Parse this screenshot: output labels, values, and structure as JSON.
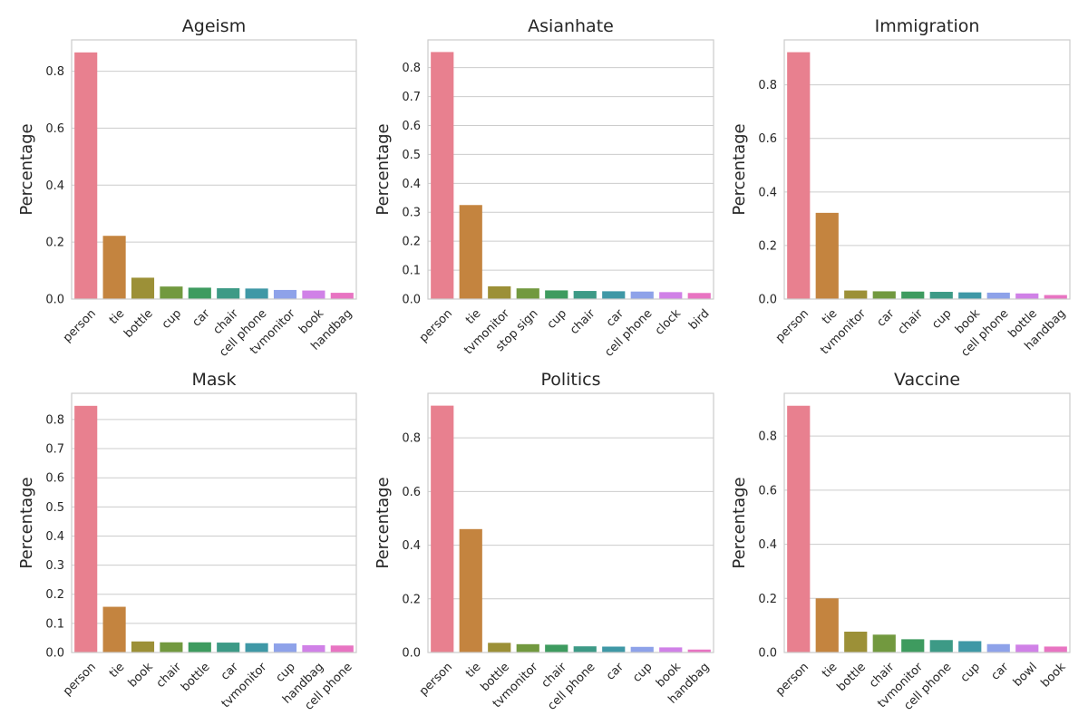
{
  "colors": [
    "#e8808f",
    "#c4843f",
    "#9c9037",
    "#72993f",
    "#3e9b5f",
    "#3d9a86",
    "#3f98a6",
    "#8ea2e9",
    "#d081e7",
    "#e874c2"
  ],
  "chart_data": [
    {
      "type": "bar",
      "title": "Ageism",
      "ylabel": "Percentage",
      "categories": [
        "person",
        "tie",
        "bottle",
        "cup",
        "car",
        "chair",
        "cell phone",
        "tvmonitor",
        "book",
        "handbag"
      ],
      "values": [
        0.866,
        0.222,
        0.075,
        0.044,
        0.04,
        0.038,
        0.037,
        0.032,
        0.03,
        0.022
      ],
      "ylim": [
        0,
        0.91
      ],
      "yticks": [
        "0.0",
        "0.2",
        "0.4",
        "0.6",
        "0.8"
      ],
      "grid": true
    },
    {
      "type": "bar",
      "title": "Asianhate",
      "ylabel": "Percentage",
      "categories": [
        "person",
        "tie",
        "tvmonitor",
        "stop sign",
        "cup",
        "chair",
        "car",
        "cell phone",
        "clock",
        "bird"
      ],
      "values": [
        0.854,
        0.325,
        0.044,
        0.037,
        0.03,
        0.028,
        0.027,
        0.026,
        0.024,
        0.021
      ],
      "ylim": [
        0,
        0.896
      ],
      "yticks": [
        "0.0",
        "0.1",
        "0.2",
        "0.3",
        "0.4",
        "0.5",
        "0.6",
        "0.7",
        "0.8"
      ],
      "grid": true
    },
    {
      "type": "bar",
      "title": "Immigration",
      "ylabel": "Percentage",
      "categories": [
        "person",
        "tie",
        "tvmonitor",
        "car",
        "chair",
        "cup",
        "book",
        "cell phone",
        "bottle",
        "handbag"
      ],
      "values": [
        0.922,
        0.322,
        0.032,
        0.029,
        0.028,
        0.027,
        0.025,
        0.024,
        0.021,
        0.015
      ],
      "ylim": [
        0,
        0.968
      ],
      "yticks": [
        "0.0",
        "0.2",
        "0.4",
        "0.6",
        "0.8"
      ],
      "grid": true
    },
    {
      "type": "bar",
      "title": "Mask",
      "ylabel": "Percentage",
      "categories": [
        "person",
        "tie",
        "book",
        "chair",
        "bottle",
        "car",
        "tvmonitor",
        "cup",
        "handbag",
        "cell phone"
      ],
      "values": [
        0.847,
        0.157,
        0.038,
        0.035,
        0.035,
        0.034,
        0.032,
        0.031,
        0.025,
        0.024
      ],
      "ylim": [
        0,
        0.89
      ],
      "yticks": [
        "0.0",
        "0.1",
        "0.2",
        "0.3",
        "0.4",
        "0.5",
        "0.6",
        "0.7",
        "0.8"
      ],
      "grid": true
    },
    {
      "type": "bar",
      "title": "Politics",
      "ylabel": "Percentage",
      "categories": [
        "person",
        "tie",
        "bottle",
        "tvmonitor",
        "chair",
        "cell phone",
        "car",
        "cup",
        "book",
        "handbag"
      ],
      "values": [
        0.92,
        0.46,
        0.036,
        0.031,
        0.029,
        0.023,
        0.022,
        0.021,
        0.019,
        0.011
      ],
      "ylim": [
        0,
        0.966
      ],
      "yticks": [
        "0.0",
        "0.2",
        "0.4",
        "0.6",
        "0.8"
      ],
      "grid": true
    },
    {
      "type": "bar",
      "title": "Vaccine",
      "ylabel": "Percentage",
      "categories": [
        "person",
        "tie",
        "bottle",
        "chair",
        "tvmonitor",
        "cell phone",
        "cup",
        "car",
        "bowl",
        "book"
      ],
      "values": [
        0.912,
        0.2,
        0.077,
        0.066,
        0.049,
        0.046,
        0.042,
        0.031,
        0.029,
        0.022
      ],
      "ylim": [
        0,
        0.958
      ],
      "yticks": [
        "0.0",
        "0.2",
        "0.4",
        "0.6",
        "0.8"
      ],
      "grid": true
    }
  ]
}
